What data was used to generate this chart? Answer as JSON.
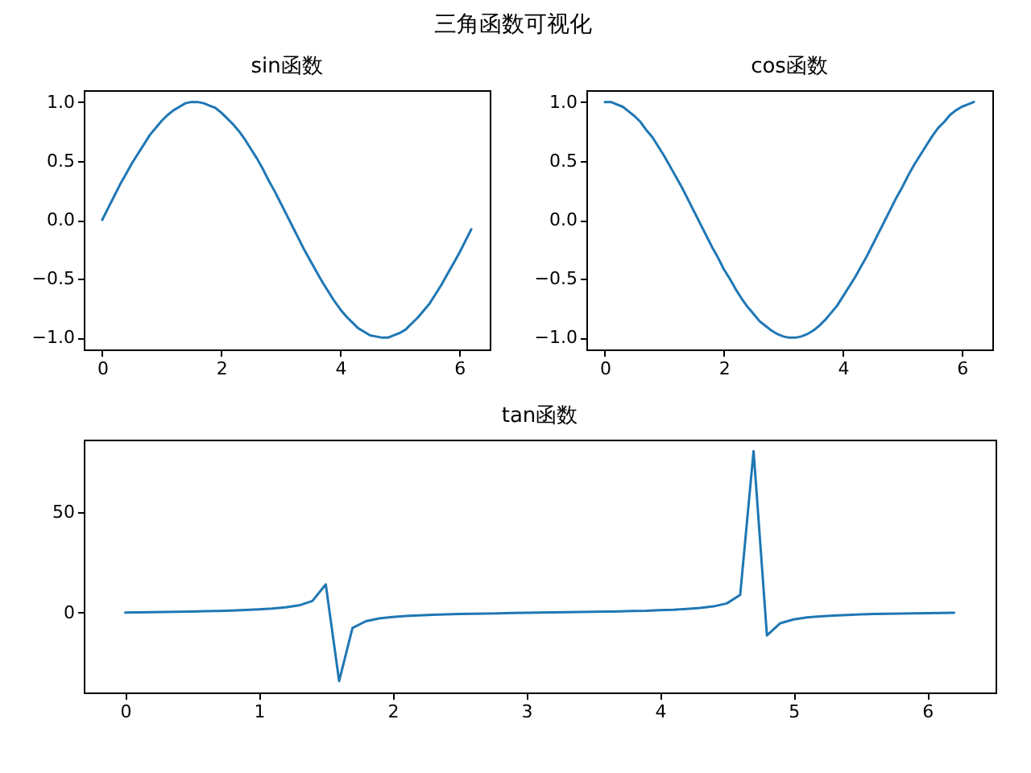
{
  "chart_data": [
    {
      "type": "other",
      "title": "三角函数可视化"
    },
    {
      "type": "line",
      "title": "sin函数",
      "xlim": [
        -0.31,
        6.51
      ],
      "ylim": [
        -1.1,
        1.1
      ],
      "xticks": [
        0,
        2,
        4,
        6
      ],
      "yticks": [
        {
          "value": 1,
          "label": "1.0"
        },
        {
          "value": 0.5,
          "label": "0.5"
        },
        {
          "value": 0,
          "label": "0.0"
        },
        {
          "value": -0.5,
          "label": "−0.5"
        },
        {
          "value": -1,
          "label": "−1.0"
        }
      ],
      "grid": false,
      "x": [
        0,
        0.1,
        0.2,
        0.3,
        0.4,
        0.5,
        0.6,
        0.7,
        0.8,
        0.9,
        1.0,
        1.1,
        1.2,
        1.3,
        1.4,
        1.5,
        1.6,
        1.7,
        1.8,
        1.9,
        2.0,
        2.1,
        2.2,
        2.3,
        2.4,
        2.5,
        2.6,
        2.7,
        2.8,
        2.9,
        3.0,
        3.1,
        3.2,
        3.3,
        3.4,
        3.5,
        3.6,
        3.7,
        3.8,
        3.9,
        4.0,
        4.1,
        4.2,
        4.3,
        4.4,
        4.5,
        4.6,
        4.7,
        4.8,
        4.9,
        5.0,
        5.1,
        5.2,
        5.3,
        5.4,
        5.5,
        5.6,
        5.7,
        5.8,
        5.9,
        6.0,
        6.1,
        6.2
      ],
      "series": [
        {
          "color": "#1f77b4",
          "values": [
            0,
            0.1,
            0.2,
            0.3,
            0.39,
            0.48,
            0.56,
            0.64,
            0.72,
            0.78,
            0.84,
            0.89,
            0.93,
            0.96,
            0.99,
            1.0,
            1.0,
            0.99,
            0.97,
            0.95,
            0.91,
            0.86,
            0.81,
            0.75,
            0.68,
            0.6,
            0.52,
            0.43,
            0.33,
            0.24,
            0.14,
            0.04,
            -0.06,
            -0.16,
            -0.26,
            -0.35,
            -0.44,
            -0.53,
            -0.61,
            -0.69,
            -0.76,
            -0.82,
            -0.87,
            -0.92,
            -0.95,
            -0.98,
            -0.99,
            -1.0,
            -1.0,
            -0.98,
            -0.96,
            -0.93,
            -0.88,
            -0.83,
            -0.77,
            -0.71,
            -0.63,
            -0.55,
            -0.46,
            -0.37,
            -0.28,
            -0.18,
            -0.08
          ]
        }
      ]
    },
    {
      "type": "line",
      "title": "cos函数",
      "xlim": [
        -0.31,
        6.51
      ],
      "ylim": [
        -1.1,
        1.1
      ],
      "xticks": [
        0,
        2,
        4,
        6
      ],
      "yticks": [
        {
          "value": 1,
          "label": "1.0"
        },
        {
          "value": 0.5,
          "label": "0.5"
        },
        {
          "value": 0,
          "label": "0.0"
        },
        {
          "value": -0.5,
          "label": "−0.5"
        },
        {
          "value": -1,
          "label": "−1.0"
        }
      ],
      "grid": false,
      "x": [
        0,
        0.1,
        0.2,
        0.3,
        0.4,
        0.5,
        0.6,
        0.7,
        0.8,
        0.9,
        1.0,
        1.1,
        1.2,
        1.3,
        1.4,
        1.5,
        1.6,
        1.7,
        1.8,
        1.9,
        2.0,
        2.1,
        2.2,
        2.3,
        2.4,
        2.5,
        2.6,
        2.7,
        2.8,
        2.9,
        3.0,
        3.1,
        3.2,
        3.3,
        3.4,
        3.5,
        3.6,
        3.7,
        3.8,
        3.9,
        4.0,
        4.1,
        4.2,
        4.3,
        4.4,
        4.5,
        4.6,
        4.7,
        4.8,
        4.9,
        5.0,
        5.1,
        5.2,
        5.3,
        5.4,
        5.5,
        5.6,
        5.7,
        5.8,
        5.9,
        6.0,
        6.1,
        6.2
      ],
      "series": [
        {
          "color": "#1f77b4",
          "values": [
            1.0,
            1.0,
            0.98,
            0.96,
            0.92,
            0.88,
            0.83,
            0.76,
            0.7,
            0.62,
            0.54,
            0.45,
            0.36,
            0.27,
            0.17,
            0.07,
            -0.03,
            -0.13,
            -0.23,
            -0.32,
            -0.42,
            -0.5,
            -0.59,
            -0.67,
            -0.74,
            -0.8,
            -0.86,
            -0.9,
            -0.94,
            -0.97,
            -0.99,
            -1.0,
            -1.0,
            -0.99,
            -0.97,
            -0.94,
            -0.9,
            -0.85,
            -0.79,
            -0.73,
            -0.65,
            -0.57,
            -0.49,
            -0.4,
            -0.31,
            -0.21,
            -0.11,
            -0.01,
            0.09,
            0.19,
            0.28,
            0.38,
            0.47,
            0.55,
            0.63,
            0.71,
            0.78,
            0.83,
            0.89,
            0.93,
            0.96,
            0.98,
            1.0
          ]
        }
      ]
    },
    {
      "type": "line",
      "title": "tan函数",
      "xlim": [
        -0.31,
        6.51
      ],
      "ylim": [
        -39.9,
        86.4
      ],
      "xticks": [
        0,
        1,
        2,
        3,
        4,
        5,
        6
      ],
      "yticks": [
        0,
        50
      ],
      "grid": false,
      "x": [
        0,
        0.1,
        0.2,
        0.3,
        0.4,
        0.5,
        0.6,
        0.7,
        0.8,
        0.9,
        1.0,
        1.1,
        1.2,
        1.3,
        1.4,
        1.5,
        1.6,
        1.7,
        1.8,
        1.9,
        2.0,
        2.1,
        2.2,
        2.3,
        2.4,
        2.5,
        2.6,
        2.7,
        2.8,
        2.9,
        3.0,
        3.1,
        3.2,
        3.3,
        3.4,
        3.5,
        3.6,
        3.7,
        3.8,
        3.9,
        4.0,
        4.1,
        4.2,
        4.3,
        4.4,
        4.5,
        4.6,
        4.7,
        4.8,
        4.9,
        5.0,
        5.1,
        5.2,
        5.3,
        5.4,
        5.5,
        5.6,
        5.7,
        5.8,
        5.9,
        6.0,
        6.1,
        6.2
      ],
      "series": [
        {
          "color": "#1f77b4",
          "values": [
            0,
            0.1,
            0.2,
            0.3,
            0.4,
            0.5,
            0.7,
            0.8,
            1.0,
            1.3,
            1.6,
            2.0,
            2.6,
            3.6,
            5.8,
            14.1,
            -34.2,
            -7.7,
            -4.3,
            -2.9,
            -2.2,
            -1.7,
            -1.4,
            -1.1,
            -0.9,
            -0.7,
            -0.6,
            -0.5,
            -0.4,
            -0.2,
            -0.1,
            0.0,
            0.1,
            0.2,
            0.3,
            0.4,
            0.5,
            0.6,
            0.8,
            0.9,
            1.2,
            1.4,
            1.8,
            2.3,
            3.1,
            4.6,
            8.9,
            80.7,
            -11.4,
            -5.3,
            -3.4,
            -2.4,
            -1.9,
            -1.5,
            -1.2,
            -0.9,
            -0.7,
            -0.6,
            -0.5,
            -0.4,
            -0.3,
            -0.2,
            -0.1
          ]
        }
      ]
    }
  ]
}
